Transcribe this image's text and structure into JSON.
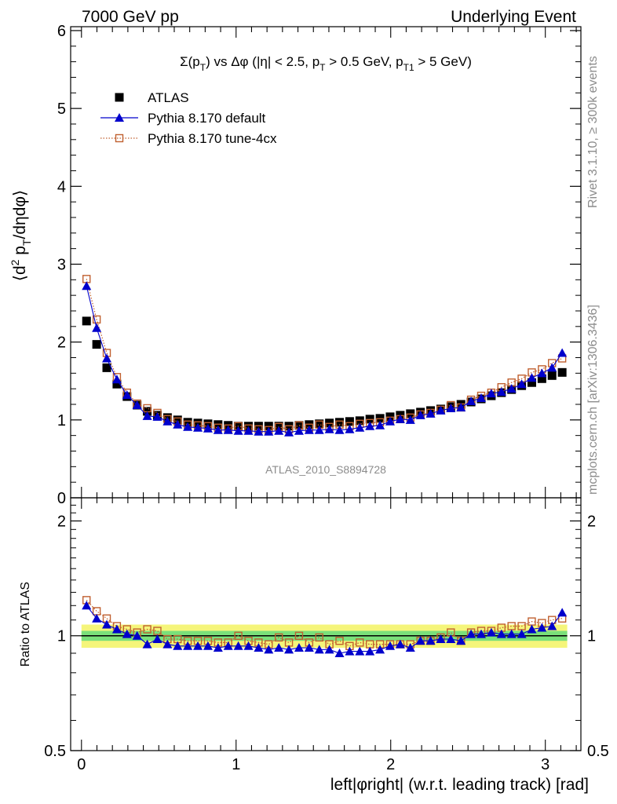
{
  "header": {
    "left": "7000 GeV pp",
    "right": "Underlying Event"
  },
  "side_labels": {
    "rivet": "Rivet 3.1.10, ≥ 300k events",
    "mcplots": "mcplots.cern.ch [arXiv:1306.3436]"
  },
  "chart_data": [
    {
      "type": "scatter",
      "title": "Σ(p_T) vs Δφ (|η| < 2.5, p_T > 0.5 GeV, p_T1 > 5 GeV)",
      "ylabel": "⟨d² p_T/dηdφ⟩",
      "xlabel": "left|φright| (w.r.t. leading track) [rad]",
      "watermark": "ATLAS_2010_S8894728",
      "xlim": [
        -0.07,
        3.23
      ],
      "ylim": [
        0,
        6.05
      ],
      "y_ticks": [
        0,
        1,
        2,
        3,
        4,
        5,
        6
      ],
      "x_ticks": [
        0,
        1,
        2,
        3
      ],
      "legend_position": "top-left",
      "x": [
        0.0327,
        0.0982,
        0.1636,
        0.2291,
        0.2945,
        0.36,
        0.4254,
        0.4909,
        0.5563,
        0.6218,
        0.6872,
        0.7527,
        0.8181,
        0.8836,
        0.949,
        1.0145,
        1.0799,
        1.1454,
        1.2108,
        1.2763,
        1.3417,
        1.4072,
        1.4726,
        1.5381,
        1.6035,
        1.669,
        1.7344,
        1.7999,
        1.8653,
        1.9308,
        1.9962,
        2.0617,
        2.1271,
        2.1926,
        2.258,
        2.3235,
        2.3889,
        2.4544,
        2.5198,
        2.5853,
        2.6507,
        2.7162,
        2.7816,
        2.8471,
        2.9125,
        2.978,
        3.0434,
        3.1089
      ],
      "series": [
        {
          "name": "ATLAS",
          "color": "#000000",
          "marker": "square-filled",
          "values": [
            2.27,
            1.97,
            1.67,
            1.46,
            1.3,
            1.19,
            1.11,
            1.06,
            1.03,
            1.0,
            0.97,
            0.96,
            0.95,
            0.94,
            0.93,
            0.92,
            0.92,
            0.92,
            0.92,
            0.92,
            0.92,
            0.93,
            0.94,
            0.95,
            0.96,
            0.97,
            0.98,
            0.99,
            1.01,
            1.02,
            1.04,
            1.06,
            1.08,
            1.1,
            1.12,
            1.14,
            1.17,
            1.2,
            1.23,
            1.27,
            1.31,
            1.35,
            1.39,
            1.44,
            1.48,
            1.53,
            1.57,
            1.61
          ]
        },
        {
          "name": "Pythia 8.170 default",
          "color": "#0000cc",
          "marker": "triangle-filled",
          "line": "solid",
          "values": [
            2.72,
            2.18,
            1.79,
            1.52,
            1.32,
            1.19,
            1.05,
            1.04,
            0.98,
            0.94,
            0.91,
            0.9,
            0.89,
            0.87,
            0.87,
            0.86,
            0.86,
            0.85,
            0.85,
            0.86,
            0.84,
            0.86,
            0.87,
            0.87,
            0.88,
            0.87,
            0.88,
            0.9,
            0.92,
            0.93,
            0.98,
            1.01,
            1.0,
            1.06,
            1.08,
            1.12,
            1.15,
            1.16,
            1.24,
            1.28,
            1.34,
            1.36,
            1.4,
            1.46,
            1.54,
            1.6,
            1.67,
            1.86
          ]
        },
        {
          "name": "Pythia 8.170 tune-4cx",
          "color": "#c06030",
          "marker": "square-open",
          "line": "dotted",
          "values": [
            2.81,
            2.29,
            1.86,
            1.55,
            1.35,
            1.21,
            1.15,
            1.09,
            1.01,
            0.98,
            0.94,
            0.93,
            0.92,
            0.9,
            0.89,
            0.92,
            0.89,
            0.88,
            0.87,
            0.91,
            0.88,
            0.93,
            0.9,
            0.94,
            0.91,
            0.94,
            0.92,
            0.95,
            0.96,
            0.97,
            0.99,
            1.01,
            1.03,
            1.07,
            1.09,
            1.13,
            1.19,
            1.16,
            1.26,
            1.31,
            1.35,
            1.42,
            1.48,
            1.53,
            1.61,
            1.65,
            1.73,
            1.79
          ]
        }
      ]
    },
    {
      "type": "scatter",
      "ylabel": "Ratio to ATLAS",
      "xlabel": "left|φright| (w.r.t. leading track) [rad]",
      "xlim": [
        -0.07,
        3.23
      ],
      "ylim": [
        0.5,
        2.3
      ],
      "y_ticks": [
        "0.5",
        "1",
        "2"
      ],
      "x_ticks": [
        "0",
        "1",
        "2",
        "3"
      ],
      "bands": [
        {
          "color": "#f5f57a",
          "half_width": 0.07
        },
        {
          "color": "#7ae07a",
          "half_width": 0.03
        }
      ],
      "x": [
        0.0327,
        0.0982,
        0.1636,
        0.2291,
        0.2945,
        0.36,
        0.4254,
        0.4909,
        0.5563,
        0.6218,
        0.6872,
        0.7527,
        0.8181,
        0.8836,
        0.949,
        1.0145,
        1.0799,
        1.1454,
        1.2108,
        1.2763,
        1.3417,
        1.4072,
        1.4726,
        1.5381,
        1.6035,
        1.669,
        1.7344,
        1.7999,
        1.8653,
        1.9308,
        1.9962,
        2.0617,
        2.1271,
        2.1926,
        2.258,
        2.3235,
        2.3889,
        2.4544,
        2.5198,
        2.5853,
        2.6507,
        2.7162,
        2.7816,
        2.8471,
        2.9125,
        2.978,
        3.0434,
        3.1089
      ],
      "series": [
        {
          "name": "Pythia 8.170 default",
          "color": "#0000cc",
          "marker": "triangle-filled",
          "line": "solid",
          "values": [
            1.2,
            1.11,
            1.07,
            1.04,
            1.01,
            1.0,
            0.95,
            0.98,
            0.95,
            0.94,
            0.94,
            0.94,
            0.94,
            0.93,
            0.94,
            0.94,
            0.94,
            0.93,
            0.92,
            0.93,
            0.92,
            0.93,
            0.93,
            0.92,
            0.92,
            0.9,
            0.91,
            0.91,
            0.91,
            0.92,
            0.94,
            0.95,
            0.93,
            0.97,
            0.97,
            0.98,
            0.98,
            0.97,
            1.01,
            1.01,
            1.02,
            1.01,
            1.01,
            1.01,
            1.04,
            1.05,
            1.06,
            1.15
          ]
        },
        {
          "name": "Pythia 8.170 tune-4cx",
          "color": "#c06030",
          "marker": "square-open",
          "line": "dotted",
          "values": [
            1.24,
            1.16,
            1.11,
            1.06,
            1.04,
            1.02,
            1.04,
            1.03,
            0.98,
            0.98,
            0.97,
            0.97,
            0.97,
            0.96,
            0.96,
            1.0,
            0.97,
            0.96,
            0.95,
            0.99,
            0.96,
            1.0,
            0.96,
            0.99,
            0.95,
            0.97,
            0.94,
            0.96,
            0.95,
            0.95,
            0.95,
            0.95,
            0.95,
            0.97,
            0.97,
            0.99,
            1.02,
            0.97,
            1.02,
            1.03,
            1.03,
            1.05,
            1.06,
            1.06,
            1.09,
            1.08,
            1.1,
            1.11
          ]
        }
      ]
    }
  ]
}
